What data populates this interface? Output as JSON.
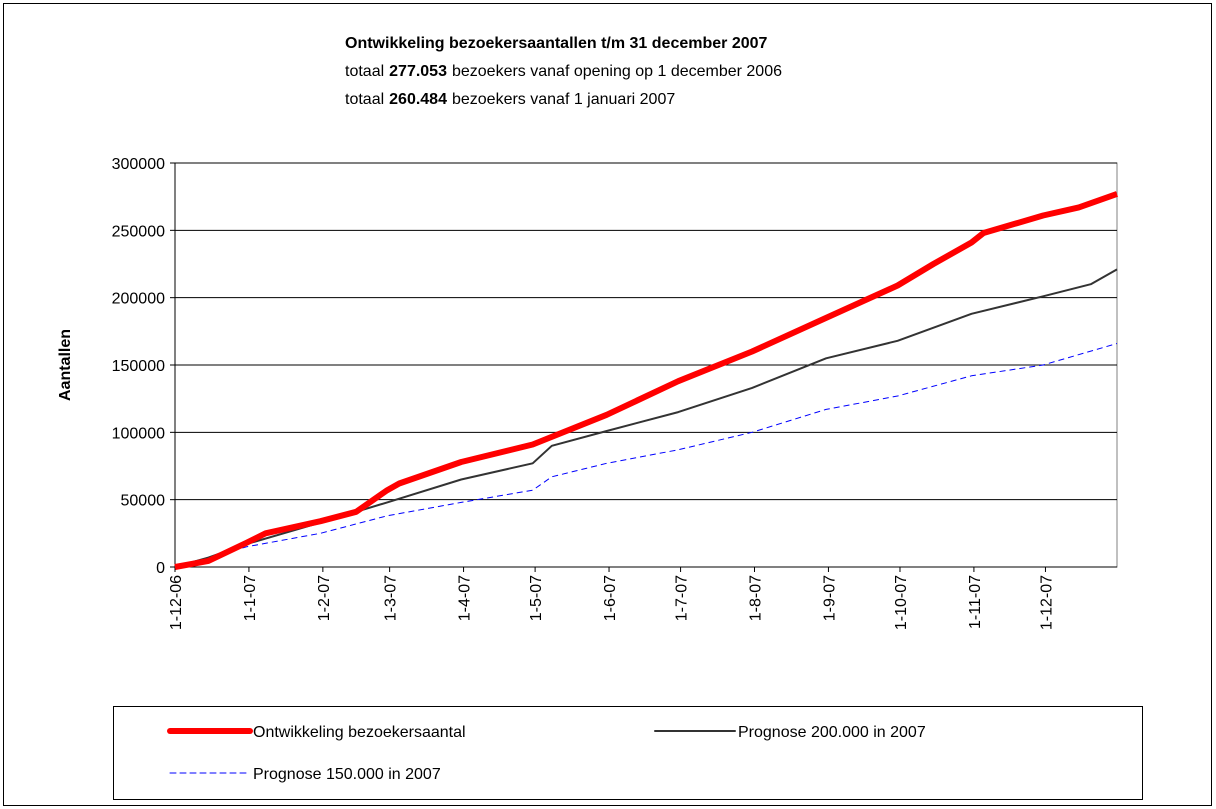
{
  "chart_data": {
    "type": "line",
    "title": "Ontwikkeling bezoekersaantallen t/m 31 december 2007",
    "subtitle_lines": [
      {
        "prefix": "totaal",
        "bold": "277.053",
        "suffix": "bezoekers vanaf opening op 1 december 2006"
      },
      {
        "prefix": "totaal",
        "bold": "260.484",
        "suffix": "bezoekers vanaf 1 januari 2007"
      }
    ],
    "y_label": "Aantallen",
    "ylim": [
      0,
      300000
    ],
    "yticks": [
      0,
      50000,
      100000,
      150000,
      200000,
      250000,
      300000
    ],
    "xlim": [
      "2006-12-01",
      "2007-12-31"
    ],
    "xticks": [
      {
        "value": "2006-12-01",
        "label": "1-12-06"
      },
      {
        "value": "2007-01-01",
        "label": "1-1-07"
      },
      {
        "value": "2007-02-01",
        "label": "1-2-07"
      },
      {
        "value": "2007-03-01",
        "label": "1-3-07"
      },
      {
        "value": "2007-04-01",
        "label": "1-4-07"
      },
      {
        "value": "2007-05-01",
        "label": "1-5-07"
      },
      {
        "value": "2007-06-01",
        "label": "1-6-07"
      },
      {
        "value": "2007-07-01",
        "label": "1-7-07"
      },
      {
        "value": "2007-08-01",
        "label": "1-8-07"
      },
      {
        "value": "2007-09-01",
        "label": "1-9-07"
      },
      {
        "value": "2007-10-01",
        "label": "1-10-07"
      },
      {
        "value": "2007-11-01",
        "label": "1-11-07"
      },
      {
        "value": "2007-12-01",
        "label": "1-12-07"
      }
    ],
    "grid": true,
    "legend": "bottom",
    "series": [
      {
        "name": "Ontwikkeling bezoekersaantal",
        "color": "#ff0000",
        "width": 6,
        "dash": "none",
        "x": [
          "2006-12-01",
          "2006-12-15",
          "2006-12-31",
          "2007-01-08",
          "2007-01-31",
          "2007-02-15",
          "2007-02-28",
          "2007-03-05",
          "2007-03-31",
          "2007-04-30",
          "2007-05-31",
          "2007-06-30",
          "2007-07-31",
          "2007-08-31",
          "2007-09-30",
          "2007-10-15",
          "2007-10-31",
          "2007-11-05",
          "2007-11-30",
          "2007-12-15",
          "2007-12-31"
        ],
        "values": [
          0,
          4500,
          18000,
          25000,
          34000,
          41000,
          57000,
          62000,
          78000,
          91000,
          113000,
          138000,
          160000,
          185000,
          209000,
          225000,
          241000,
          248000,
          261000,
          267000,
          277053
        ]
      },
      {
        "name": "Prognose 200.000 in 2007",
        "color": "#333333",
        "width": 2,
        "dash": "none",
        "x": [
          "2006-12-01",
          "2006-12-15",
          "2006-12-31",
          "2007-01-31",
          "2007-02-28",
          "2007-03-31",
          "2007-04-30",
          "2007-05-08",
          "2007-05-31",
          "2007-06-30",
          "2007-07-31",
          "2007-08-31",
          "2007-09-30",
          "2007-10-31",
          "2007-11-30",
          "2007-12-20",
          "2007-12-31"
        ],
        "values": [
          0,
          7000,
          17000,
          33000,
          48000,
          65000,
          77000,
          90000,
          101000,
          115000,
          133000,
          155000,
          168000,
          188000,
          201000,
          210000,
          221000
        ]
      },
      {
        "name": "Prognose 150.000 in 2007",
        "color": "#0000ff",
        "width": 1,
        "dash": "6 4",
        "x": [
          "2006-12-01",
          "2006-12-31",
          "2007-01-31",
          "2007-02-28",
          "2007-03-31",
          "2007-04-30",
          "2007-05-08",
          "2007-05-31",
          "2007-06-30",
          "2007-07-31",
          "2007-08-31",
          "2007-09-30",
          "2007-10-31",
          "2007-11-30",
          "2007-12-31"
        ],
        "values": [
          0,
          15000,
          25000,
          38000,
          48000,
          57000,
          67000,
          77000,
          87000,
          100000,
          117000,
          127000,
          142000,
          150000,
          166000
        ]
      }
    ]
  }
}
